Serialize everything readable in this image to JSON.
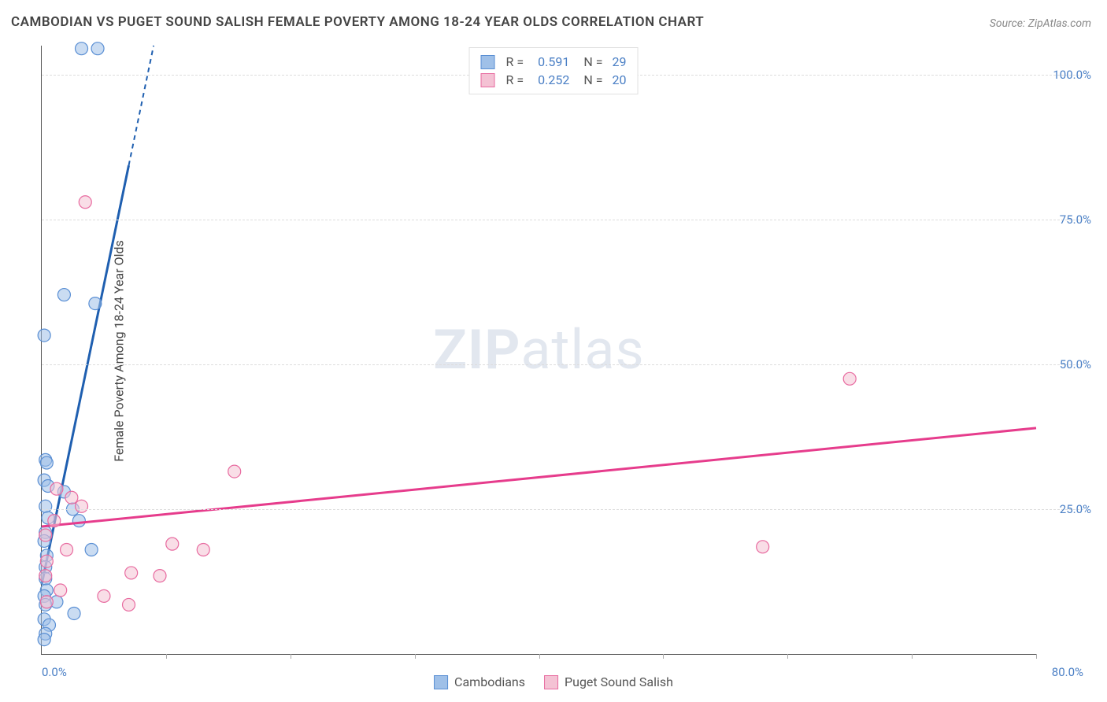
{
  "title": "CAMBODIAN VS PUGET SOUND SALISH FEMALE POVERTY AMONG 18-24 YEAR OLDS CORRELATION CHART",
  "source": "Source: ZipAtlas.com",
  "y_axis_label": "Female Poverty Among 18-24 Year Olds",
  "watermark_bold": "ZIP",
  "watermark_rest": "atlas",
  "chart": {
    "type": "scatter-correlation",
    "xlim": [
      0,
      80
    ],
    "ylim": [
      0,
      105
    ],
    "y_ticks": [
      25,
      50,
      75,
      100
    ],
    "y_tick_labels": [
      "25.0%",
      "50.0%",
      "75.0%",
      "100.0%"
    ],
    "x_ticks": [
      10,
      20,
      30,
      40,
      50,
      60,
      70,
      80
    ],
    "x_tick_label_left": "0.0%",
    "x_tick_label_right": "80.0%",
    "grid_color": "#dddddd",
    "axis_color": "#555555",
    "background_color": "#ffffff",
    "series": [
      {
        "name": "Cambodians",
        "color_fill": "#9fc0e8",
        "color_stroke": "#5a8fd4",
        "line_color": "#1f5fb0",
        "marker_radius": 8,
        "R": "0.591",
        "N": "29",
        "trend": {
          "x1": 0,
          "y1": 12,
          "x2": 9,
          "y2": 105,
          "dashed_from_x": 7
        },
        "points": [
          {
            "x": 3.2,
            "y": 104.5
          },
          {
            "x": 4.5,
            "y": 104.5
          },
          {
            "x": 0.2,
            "y": 55
          },
          {
            "x": 1.8,
            "y": 62
          },
          {
            "x": 4.3,
            "y": 60.5
          },
          {
            "x": 0.3,
            "y": 33.5
          },
          {
            "x": 0.4,
            "y": 33
          },
          {
            "x": 0.2,
            "y": 30
          },
          {
            "x": 0.5,
            "y": 29
          },
          {
            "x": 1.8,
            "y": 28
          },
          {
            "x": 0.3,
            "y": 25.5
          },
          {
            "x": 2.5,
            "y": 25
          },
          {
            "x": 0.5,
            "y": 23.5
          },
          {
            "x": 3.0,
            "y": 23
          },
          {
            "x": 0.3,
            "y": 21
          },
          {
            "x": 0.2,
            "y": 19.5
          },
          {
            "x": 4.0,
            "y": 18
          },
          {
            "x": 0.4,
            "y": 17
          },
          {
            "x": 0.3,
            "y": 15
          },
          {
            "x": 0.3,
            "y": 13
          },
          {
            "x": 0.4,
            "y": 11
          },
          {
            "x": 0.2,
            "y": 10
          },
          {
            "x": 1.2,
            "y": 9
          },
          {
            "x": 0.3,
            "y": 8.5
          },
          {
            "x": 2.6,
            "y": 7
          },
          {
            "x": 0.2,
            "y": 6
          },
          {
            "x": 0.6,
            "y": 5
          },
          {
            "x": 0.3,
            "y": 3.5
          },
          {
            "x": 0.2,
            "y": 2.5
          }
        ]
      },
      {
        "name": "Puget Sound Salish",
        "color_fill": "#f4c2d4",
        "color_stroke": "#e86ba0",
        "line_color": "#e63c8c",
        "marker_radius": 8,
        "R": "0.252",
        "N": "20",
        "trend": {
          "x1": 0,
          "y1": 22,
          "x2": 80,
          "y2": 39,
          "dashed_from_x": 80
        },
        "points": [
          {
            "x": 3.5,
            "y": 78
          },
          {
            "x": 65,
            "y": 47.5
          },
          {
            "x": 58,
            "y": 18.5
          },
          {
            "x": 15.5,
            "y": 31.5
          },
          {
            "x": 10.5,
            "y": 19
          },
          {
            "x": 13,
            "y": 18
          },
          {
            "x": 7.2,
            "y": 14
          },
          {
            "x": 9.5,
            "y": 13.5
          },
          {
            "x": 5.0,
            "y": 10
          },
          {
            "x": 7.0,
            "y": 8.5
          },
          {
            "x": 1.2,
            "y": 28.5
          },
          {
            "x": 2.4,
            "y": 27
          },
          {
            "x": 3.2,
            "y": 25.5
          },
          {
            "x": 1.0,
            "y": 23
          },
          {
            "x": 0.3,
            "y": 20.5
          },
          {
            "x": 2.0,
            "y": 18
          },
          {
            "x": 0.4,
            "y": 16
          },
          {
            "x": 0.3,
            "y": 13.5
          },
          {
            "x": 1.5,
            "y": 11
          },
          {
            "x": 0.4,
            "y": 9
          }
        ]
      }
    ]
  },
  "legend_bottom": [
    {
      "label": "Cambodians",
      "fill": "#9fc0e8",
      "stroke": "#5a8fd4"
    },
    {
      "label": "Puget Sound Salish",
      "fill": "#f4c2d4",
      "stroke": "#e86ba0"
    }
  ]
}
